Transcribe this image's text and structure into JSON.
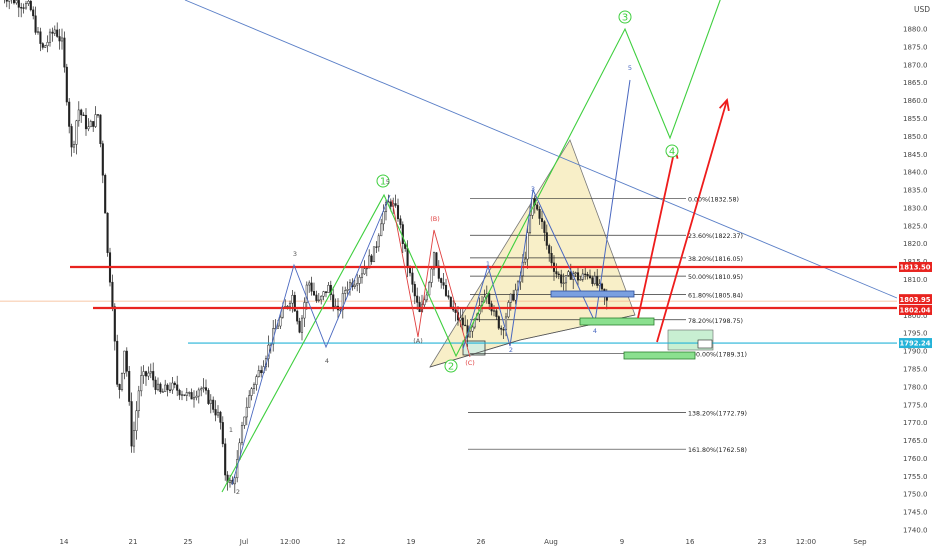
{
  "chart_data": {
    "type": "candlestick",
    "currency": "USD",
    "ylim": [
      1740,
      1888
    ],
    "x_ticks": [
      "14",
      "21",
      "25",
      "Jul",
      "12:00",
      "12",
      "19",
      "26",
      "Aug",
      "9",
      "16",
      "23",
      "12:00",
      "Sep"
    ],
    "y_ticks": [
      1740,
      1745,
      1750,
      1755,
      1760,
      1765,
      1770,
      1775,
      1780,
      1785,
      1790,
      1795,
      1800,
      1805,
      1810,
      1815,
      1820,
      1825,
      1830,
      1835,
      1840,
      1845,
      1850,
      1855,
      1860,
      1865,
      1870,
      1875,
      1880
    ],
    "price_badges": [
      {
        "value": 1813.5,
        "label": "1813.50",
        "color": "#e8231f"
      },
      {
        "value": 1803.95,
        "label": "1803.95",
        "color": "#e8231f"
      },
      {
        "value": 1802.04,
        "label": "1802.04",
        "color": "#e8231f"
      },
      {
        "value": 1792.24,
        "label": "1792.24",
        "color": "#25b3d8"
      }
    ],
    "horizontal_lines": [
      {
        "value": 1813.5,
        "color": "#e8231f"
      },
      {
        "value": 1802.04,
        "color": "#e8231f"
      },
      {
        "value": 1792.24,
        "color": "#25b3d8"
      }
    ],
    "fibonacci_levels": [
      {
        "label": "0.00%(1832.58)",
        "value": 1832.58
      },
      {
        "label": "23.60%(1822.37)",
        "value": 1822.37
      },
      {
        "label": "38.20%(1816.05)",
        "value": 1816.05
      },
      {
        "label": "50.00%(1810.95)",
        "value": 1810.95
      },
      {
        "label": "61.80%(1805.84)",
        "value": 1805.84
      },
      {
        "label": "78.20%(1798.75)",
        "value": 1798.75
      },
      {
        "label": "100.00%(1789.31)",
        "value": 1789.31
      },
      {
        "label": "138.20%(1772.79)",
        "value": 1772.79
      },
      {
        "label": "161.80%(1762.58)",
        "value": 1762.58
      }
    ],
    "wave_labels": [
      "1",
      "2",
      "3",
      "4",
      "(A)",
      "(B)",
      "(C)",
      "5"
    ],
    "colors": {
      "candle": "#222222",
      "trendline": "#5a7fc7",
      "wave_green": "#3fcf3f",
      "wave_blue": "#4a68c0",
      "wave_red": "#e04040",
      "arrow": "#ee1c1c",
      "triangle": "#f5e9b6"
    }
  },
  "axis": {
    "currency_label": "USD"
  }
}
